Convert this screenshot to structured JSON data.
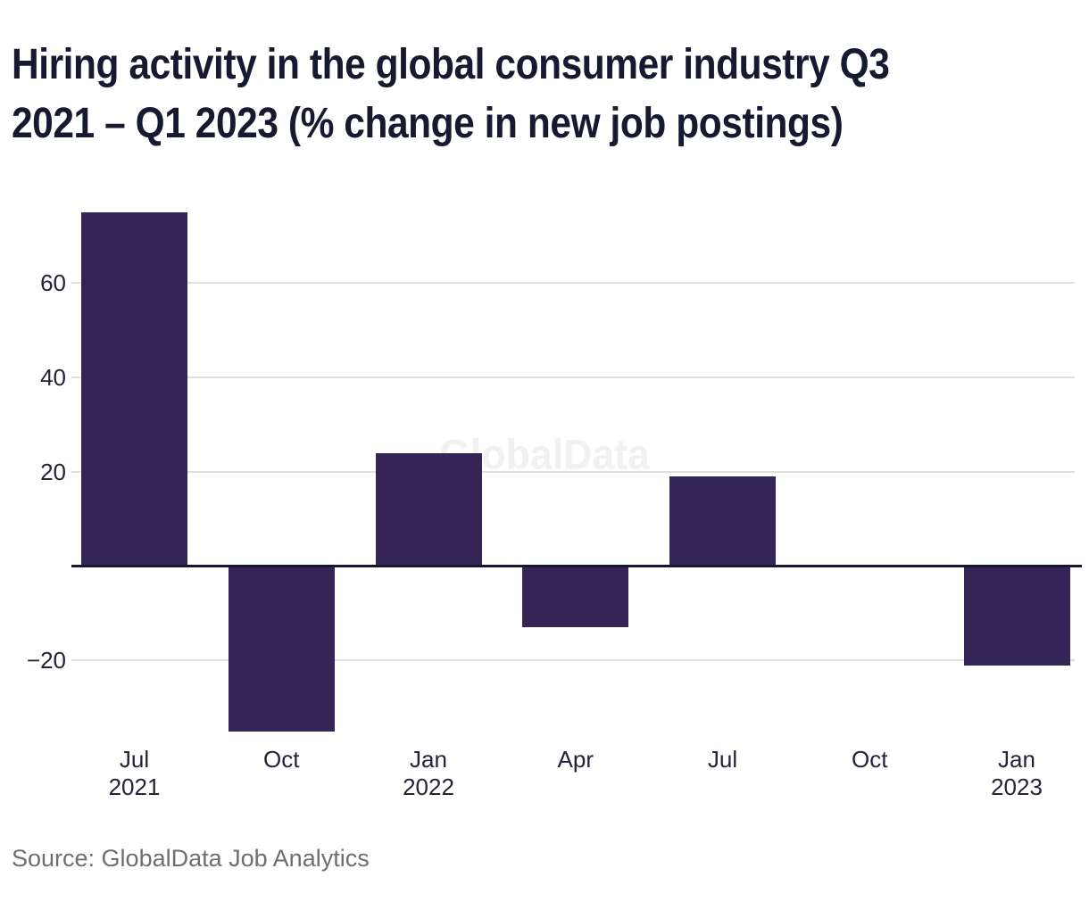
{
  "title": {
    "line1": "Hiring activity in the global consumer industry Q3",
    "line2": "2021 – Q1 2023 (% change in new job postings)"
  },
  "watermark": "GlobalData",
  "source": "Source: GlobalData Job Analytics",
  "chart_data": {
    "type": "bar",
    "title": "Hiring activity in the global consumer industry Q3 2021 – Q1 2023 (% change in new job postings)",
    "xlabel": "",
    "ylabel": "",
    "categories": [
      "Jul 2021",
      "Oct 2021",
      "Jan 2022",
      "Apr 2022",
      "Jul 2022",
      "Oct 2022",
      "Jan 2023"
    ],
    "category_labels": [
      [
        "Jul",
        "2021"
      ],
      [
        "Oct"
      ],
      [
        "Jan",
        "2022"
      ],
      [
        "Apr"
      ],
      [
        "Jul"
      ],
      [
        "Oct"
      ],
      [
        "Jan",
        "2023"
      ]
    ],
    "values": [
      75,
      -35,
      24,
      -13,
      19,
      0,
      -21
    ],
    "ylim": [
      -40,
      80
    ],
    "yticks": [
      {
        "label": "60",
        "value": 60
      },
      {
        "label": "40",
        "value": 40
      },
      {
        "label": "20",
        "value": 20
      },
      {
        "label": "−20",
        "value": -20
      }
    ],
    "grid": true,
    "legend": "none",
    "colors": {
      "bar": "#352557",
      "zero_line": "#181732",
      "gridline": "#e0e0e0",
      "tick_text": "#23233a",
      "title_text": "#171930",
      "watermark": "#f1f1f1",
      "source_text": "#6f6f6f",
      "background": "#ffffff"
    }
  }
}
